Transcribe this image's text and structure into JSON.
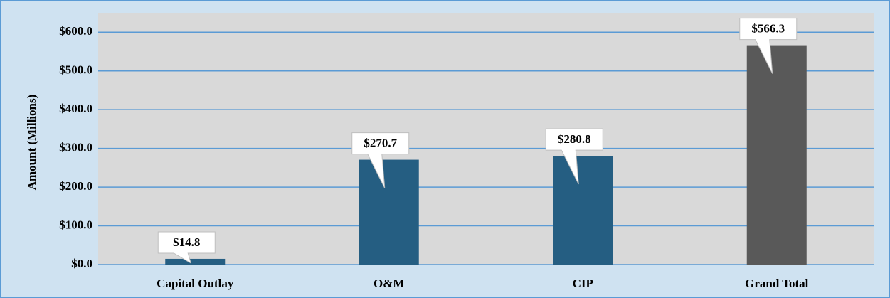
{
  "chart_data": {
    "type": "bar",
    "y_label": "Amount (Millions)",
    "categories": [
      "Capital Outlay",
      "O&M",
      "CIP",
      "Grand Total"
    ],
    "values": [
      14.8,
      270.7,
      280.8,
      566.3
    ],
    "value_labels": [
      "$14.8",
      "$270.7",
      "$280.8",
      "$566.3"
    ],
    "colors": [
      "#255e82",
      "#255e82",
      "#255e82",
      "#595959"
    ],
    "ylim": [
      0,
      650
    ],
    "yticks": [
      {
        "value": 0,
        "label": "$0.0"
      },
      {
        "value": 100,
        "label": "$100.0"
      },
      {
        "value": 200,
        "label": "$200.0"
      },
      {
        "value": 300,
        "label": "$300.0"
      },
      {
        "value": 400,
        "label": "$400.0"
      },
      {
        "value": 500,
        "label": "$500.0"
      },
      {
        "value": 600,
        "label": "$600.0"
      }
    ],
    "grid": true
  }
}
